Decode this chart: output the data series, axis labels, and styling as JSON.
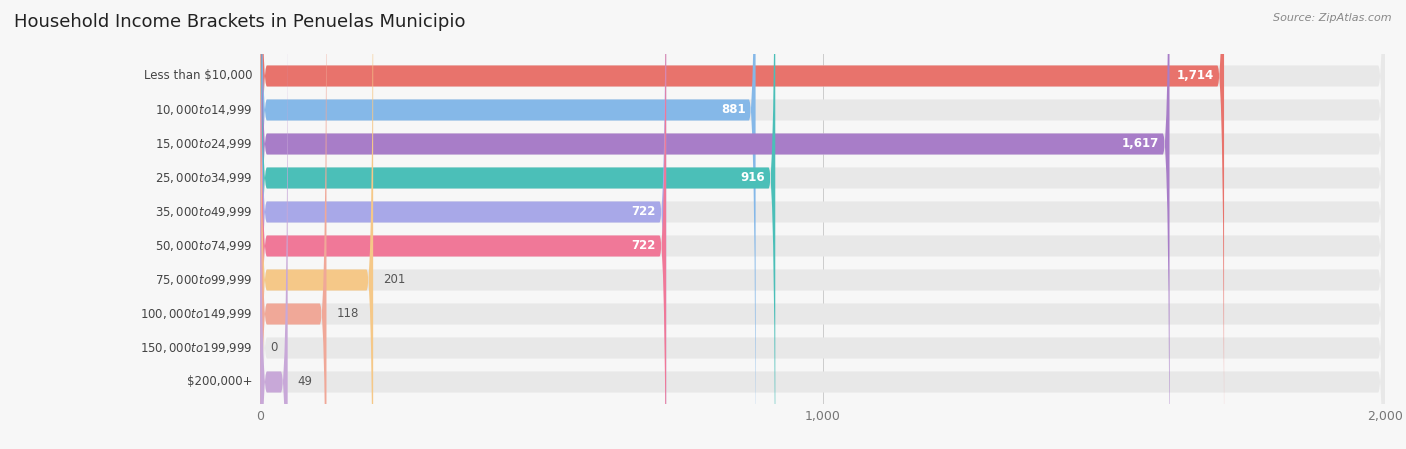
{
  "title": "Household Income Brackets in Penuelas Municipio",
  "source": "Source: ZipAtlas.com",
  "categories": [
    "Less than $10,000",
    "$10,000 to $14,999",
    "$15,000 to $24,999",
    "$25,000 to $34,999",
    "$35,000 to $49,999",
    "$50,000 to $74,999",
    "$75,000 to $99,999",
    "$100,000 to $149,999",
    "$150,000 to $199,999",
    "$200,000+"
  ],
  "values": [
    1714,
    881,
    1617,
    916,
    722,
    722,
    201,
    118,
    0,
    49
  ],
  "bar_colors": [
    "#E8736C",
    "#85B8E8",
    "#A87DC8",
    "#4BBFB8",
    "#A8A8E8",
    "#F07898",
    "#F5C888",
    "#F0A898",
    "#88B8E8",
    "#C8A8D8"
  ],
  "xlim": [
    0,
    2000
  ],
  "xticks": [
    0,
    1000,
    2000
  ],
  "xtick_labels": [
    "0",
    "1,000",
    "2,000"
  ],
  "background_color": "#f7f7f7",
  "bar_bg_color": "#e8e8e8",
  "bar_row_bg": "#efefef",
  "title_fontsize": 13,
  "label_fontsize": 8.5,
  "value_fontsize": 8.5,
  "bar_height": 0.62,
  "label_color": "#444444",
  "value_color_inside": "#ffffff",
  "value_color_outside": "#555555",
  "inside_threshold": 400
}
